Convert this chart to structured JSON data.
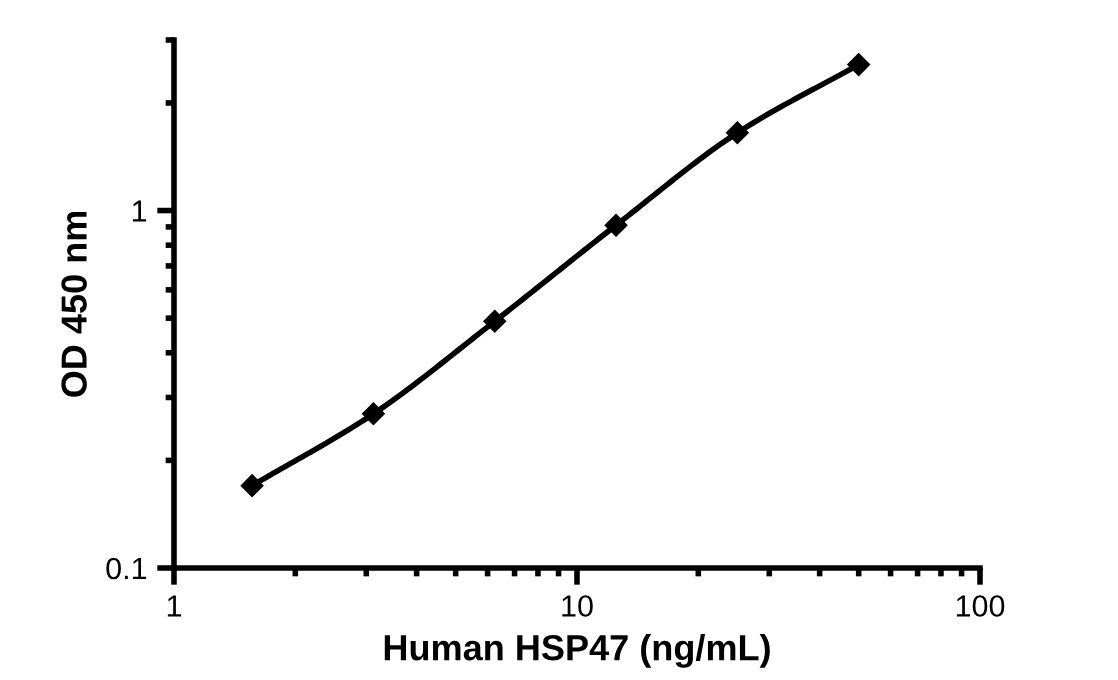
{
  "chart_data": {
    "type": "line",
    "xlabel": "Human HSP47 (ng/mL)",
    "ylabel": "OD 450 nm",
    "x": [
      1.5625,
      3.125,
      6.25,
      12.5,
      25,
      50
    ],
    "series": [
      {
        "color": "#000000",
        "values": [
          0.17,
          0.27,
          0.49,
          0.91,
          1.65,
          2.56
        ]
      }
    ],
    "log": "xy",
    "xlim": [
      1,
      100
    ],
    "ylim": [
      0.1,
      3
    ],
    "xticks": [
      1,
      10,
      100
    ],
    "yticks": [
      {
        "value": 0.1,
        "label": "0.1"
      },
      1
    ],
    "marker": "diamond",
    "line_style": "solid",
    "grid": false
  }
}
